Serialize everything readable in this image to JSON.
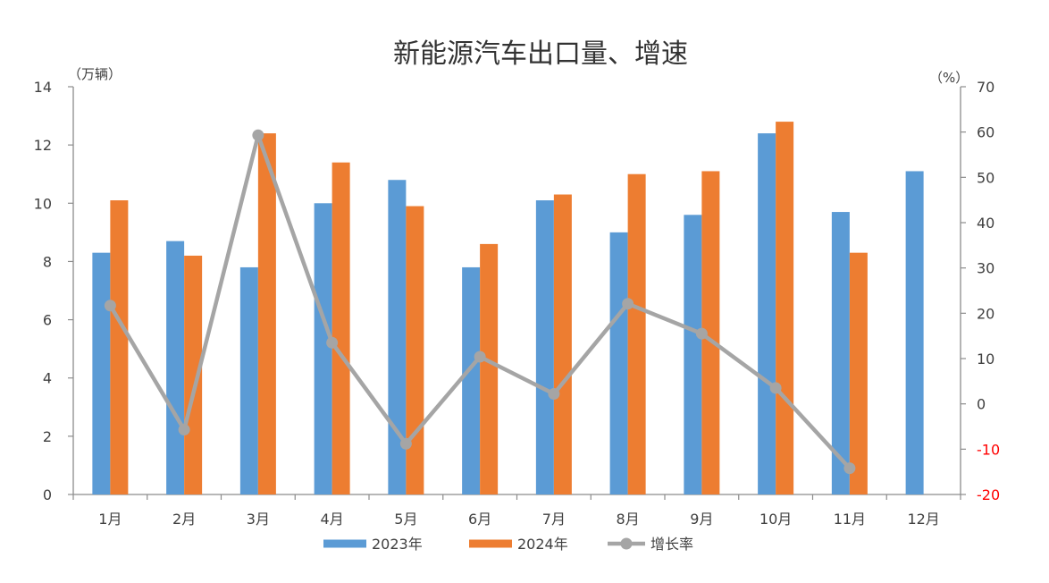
{
  "chart_data": {
    "type": "bar",
    "title": "新能源汽车出口量、增速",
    "categories": [
      "1月",
      "2月",
      "3月",
      "4月",
      "5月",
      "6月",
      "7月",
      "8月",
      "9月",
      "10月",
      "11月",
      "12月"
    ],
    "y_left": {
      "label": "（万辆）",
      "range": [
        0,
        14
      ],
      "ticks": [
        0,
        2,
        4,
        6,
        8,
        10,
        12,
        14
      ]
    },
    "y_right": {
      "label": "（%）",
      "range": [
        -20,
        70
      ],
      "ticks": [
        -20,
        -10,
        0,
        10,
        20,
        30,
        40,
        50,
        60,
        70
      ],
      "negative_label_color": "#FF0000"
    },
    "series": [
      {
        "name": "2023年",
        "type": "bar",
        "axis": "left",
        "color": "#5B9BD5",
        "values": [
          8.3,
          8.7,
          7.8,
          10.0,
          10.8,
          7.8,
          10.1,
          9.0,
          9.6,
          12.4,
          9.7,
          11.1
        ]
      },
      {
        "name": "2024年",
        "type": "bar",
        "axis": "left",
        "color": "#ED7D31",
        "values": [
          10.1,
          8.2,
          12.4,
          11.4,
          9.9,
          8.6,
          10.3,
          11.0,
          11.1,
          12.8,
          8.3,
          null
        ]
      },
      {
        "name": "增长率",
        "type": "line",
        "axis": "right",
        "color": "#A5A5A5",
        "marker": "circle",
        "values": [
          21.7,
          -5.7,
          59.3,
          13.5,
          -8.8,
          10.4,
          2.2,
          22.1,
          15.5,
          3.5,
          -14.2,
          null
        ]
      }
    ],
    "grid": false,
    "legend_position": "bottom"
  },
  "colors": {
    "axis": "#8C8C8C",
    "text": "#404040",
    "title": "#333333"
  }
}
